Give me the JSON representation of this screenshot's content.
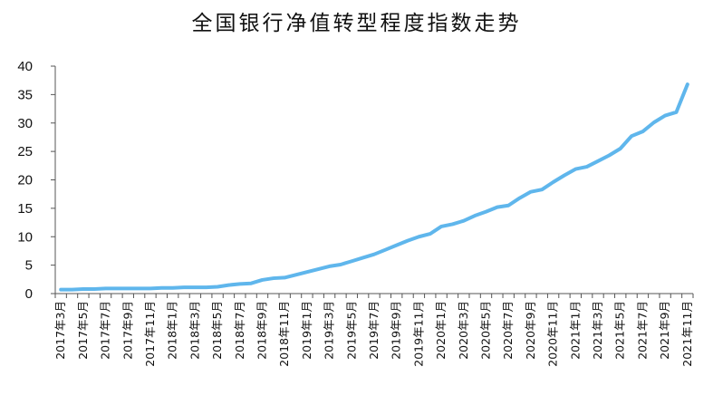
{
  "chart_data": {
    "type": "line",
    "title": "全国银行净值转型程度指数走势",
    "xlabel": "",
    "ylabel": "",
    "ylim": [
      0,
      40
    ],
    "yticks": [
      0,
      5,
      10,
      15,
      20,
      25,
      30,
      35,
      40
    ],
    "grid": false,
    "legend": "none",
    "x": [
      "2017年3月",
      "2017年4月",
      "2017年5月",
      "2017年6月",
      "2017年7月",
      "2017年8月",
      "2017年9月",
      "2017年10月",
      "2017年11月",
      "2017年12月",
      "2018年1月",
      "2018年2月",
      "2018年3月",
      "2018年4月",
      "2018年5月",
      "2018年6月",
      "2018年7月",
      "2018年8月",
      "2018年9月",
      "2018年10月",
      "2018年11月",
      "2018年12月",
      "2019年1月",
      "2019年2月",
      "2019年3月",
      "2019年4月",
      "2019年5月",
      "2019年6月",
      "2019年7月",
      "2019年8月",
      "2019年9月",
      "2019年10月",
      "2019年11月",
      "2019年12月",
      "2020年1月",
      "2020年2月",
      "2020年3月",
      "2020年4月",
      "2020年5月",
      "2020年6月",
      "2020年7月",
      "2020年8月",
      "2020年9月",
      "2020年10月",
      "2020年11月",
      "2020年12月",
      "2021年1月",
      "2021年2月",
      "2021年3月",
      "2021年4月",
      "2021年5月",
      "2021年6月",
      "2021年7月",
      "2021年8月",
      "2021年9月",
      "2021年10月",
      "2021年11月"
    ],
    "tick_labels": [
      "2017年3月",
      "2017年5月",
      "2017年7月",
      "2017年9月",
      "2017年11月",
      "2018年1月",
      "2018年3月",
      "2018年5月",
      "2018年7月",
      "2018年9月",
      "2018年11月",
      "2019年1月",
      "2019年3月",
      "2019年5月",
      "2019年7月",
      "2019年9月",
      "2019年11月",
      "2020年1月",
      "2020年3月",
      "2020年5月",
      "2020年7月",
      "2020年9月",
      "2020年11月",
      "2021年1月",
      "2021年3月",
      "2021年5月",
      "2021年7月",
      "2021年9月",
      "2021年11月"
    ],
    "series": [
      {
        "name": "",
        "color": "#5fb6ec",
        "values": [
          0.7,
          0.7,
          0.8,
          0.8,
          0.9,
          0.9,
          0.9,
          0.9,
          0.9,
          1.0,
          1.0,
          1.1,
          1.1,
          1.1,
          1.2,
          1.5,
          1.7,
          1.8,
          2.4,
          2.7,
          2.8,
          3.3,
          3.8,
          4.3,
          4.8,
          5.1,
          5.7,
          6.3,
          6.9,
          7.7,
          8.5,
          9.3,
          10.0,
          10.5,
          11.8,
          12.2,
          12.8,
          13.7,
          14.4,
          15.2,
          15.5,
          16.8,
          17.9,
          18.3,
          19.6,
          20.8,
          21.9,
          22.3,
          23.3,
          24.3,
          25.5,
          27.7,
          28.5,
          30.1,
          31.3,
          31.9,
          36.8
        ]
      }
    ]
  }
}
